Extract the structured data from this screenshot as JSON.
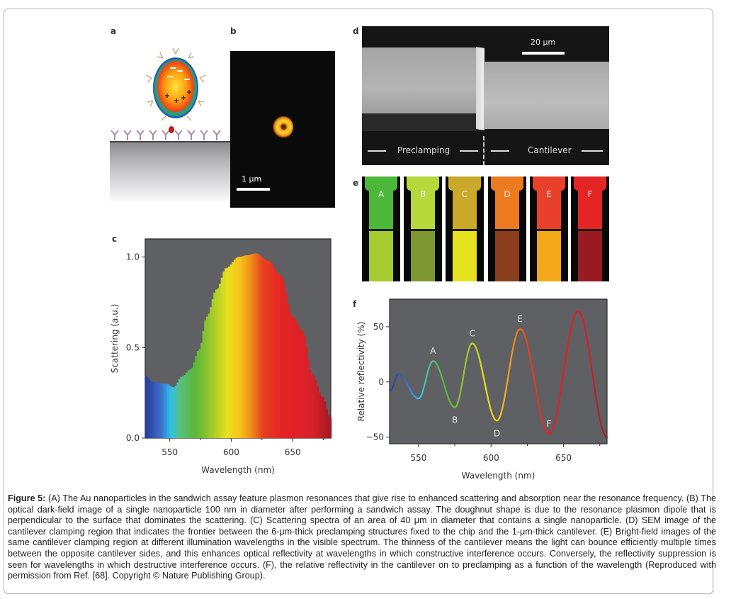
{
  "figure": {
    "panels": {
      "a": {
        "letter": "a",
        "description": "Au nanoparticle sandwich assay schematic"
      },
      "b": {
        "letter": "b",
        "scale_bar_label": "1 μm"
      },
      "c": {
        "letter": "c"
      },
      "d": {
        "letter": "d",
        "scale_bar_label": "20 μm",
        "left_region_label": "Preclamping",
        "right_region_label": "Cantilever"
      },
      "e": {
        "letter": "e",
        "tiles": [
          {
            "label": "A",
            "upper_color": "#4cb83a",
            "lower_color": "#a6cc32"
          },
          {
            "label": "B",
            "upper_color": "#b6d83a",
            "lower_color": "#7f9632"
          },
          {
            "label": "C",
            "upper_color": "#c9a82a",
            "lower_color": "#e6e21e"
          },
          {
            "label": "D",
            "upper_color": "#ec7a1e",
            "lower_color": "#8a3e1e"
          },
          {
            "label": "E",
            "upper_color": "#e8402a",
            "lower_color": "#f2a818"
          },
          {
            "label": "F",
            "upper_color": "#e52424",
            "lower_color": "#9a1a22"
          }
        ]
      },
      "f": {
        "letter": "f"
      }
    },
    "caption": {
      "label": "Figure 5:",
      "text": " (A) The Au nanoparticles in the sandwich assay feature plasmon resonances that give rise to enhanced scattering and absorption near the resonance frequency. (B) The optical dark-field image of a single nanoparticle 100 nm in diameter after performing a sandwich assay. The doughnut shape is due to the resonance plasmon dipole that is perpendicular to the surface that dominates the scattering. (C) Scattering spectra of an area of 40 μm in diameter that contains a single nanoparticle. (D) SEM image of the cantilever clamping region that indicates the frontier between the 6-μm-thick preclamping structures fixed to the chip and the 1-μm-thick cantilever. (E) Bright-field images of the same cantilever clamping region at different illumination wavelengths in the visible spectrum. The thinness of the cantilever means the light can bounce efficiently multiple times between the opposite cantilever sides, and this enhances optical reflectivity at wavelengths in which constructive interference occurs. Conversely, the reflectivity suppression is seen for wavelengths in which destructive interference occurs. (F), the relative reflectivity in the cantilever on to preclamping as a function of the wavelength (Reproduced with permission from Ref. [68]. Copyright © Nature Publishing Group)."
    }
  },
  "chart_data": [
    {
      "panel": "c",
      "type": "area",
      "title": "",
      "xlabel": "Wavelength (nm)",
      "ylabel": "Scattering (a.u.)",
      "xlim": [
        530,
        681
      ],
      "ylim": [
        0,
        1.1
      ],
      "xticks": [
        550,
        600,
        650
      ],
      "xtick_labels": [
        "550",
        "600",
        "650"
      ],
      "yticks": [
        0.0,
        0.5,
        1.0
      ],
      "ytick_labels": [
        "0.0",
        "0.5",
        "1.0"
      ],
      "background": "#5f6064",
      "fill": "visible-spectrum gradient",
      "grid": false,
      "x": [
        530,
        536,
        547,
        553,
        560,
        567,
        574,
        580,
        588,
        596,
        606,
        613,
        620,
        630,
        640,
        650,
        658,
        666,
        674,
        681
      ],
      "y": [
        0.345,
        0.31,
        0.3,
        0.28,
        0.34,
        0.38,
        0.49,
        0.67,
        0.82,
        0.94,
        1.0,
        1.01,
        1.02,
        0.98,
        0.9,
        0.67,
        0.59,
        0.35,
        0.23,
        0.11
      ]
    },
    {
      "panel": "f",
      "type": "line",
      "title": "",
      "xlabel": "Wavelength (nm)",
      "ylabel": "Relative reflectivity (%)",
      "xlim": [
        530,
        680
      ],
      "ylim": [
        -56,
        75
      ],
      "xticks": [
        550,
        600,
        650
      ],
      "xtick_labels": [
        "550",
        "600",
        "650"
      ],
      "yticks": [
        -50,
        0,
        50
      ],
      "ytick_labels": [
        "−50",
        "0",
        "50"
      ],
      "background": "#5f6064",
      "line_color": "visible-spectrum gradient",
      "grid": false,
      "x": [
        530.5,
        536,
        550,
        560,
        575,
        587,
        604,
        620,
        640,
        660,
        680
      ],
      "y": [
        -7.7,
        7,
        -15,
        19,
        -23,
        35,
        -35,
        48,
        -47,
        64,
        -50
      ],
      "annotations": [
        {
          "text": "A",
          "x": 560,
          "y": 19,
          "position": "above"
        },
        {
          "text": "B",
          "x": 575,
          "y": -23,
          "position": "below"
        },
        {
          "text": "C",
          "x": 587,
          "y": 35,
          "position": "above"
        },
        {
          "text": "D",
          "x": 604,
          "y": -35,
          "position": "below"
        },
        {
          "text": "E",
          "x": 620,
          "y": 48,
          "position": "above"
        },
        {
          "text": "F",
          "x": 640,
          "y": -47,
          "position": "above"
        }
      ]
    }
  ]
}
